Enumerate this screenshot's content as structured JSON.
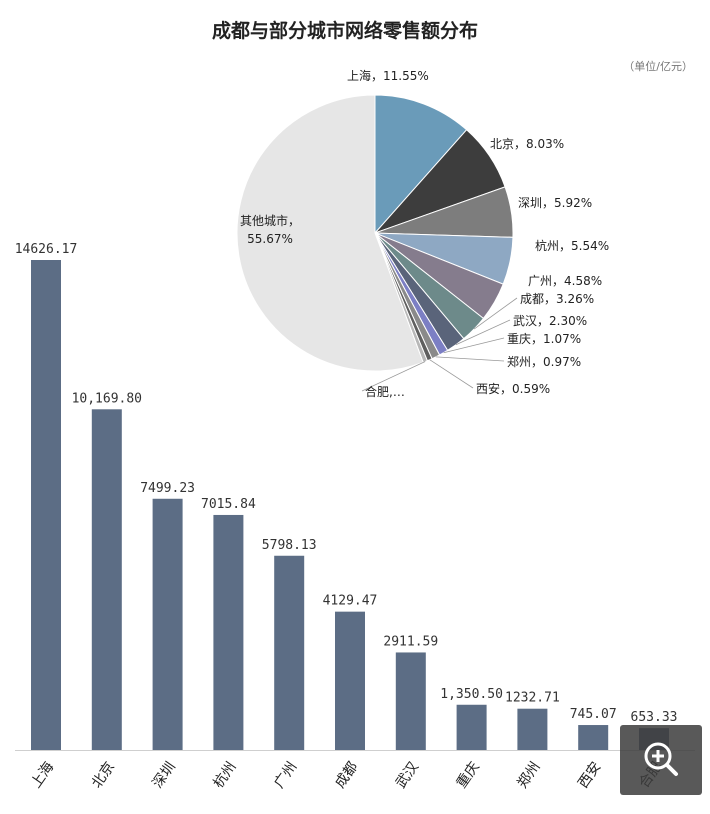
{
  "chart_data": [
    {
      "type": "bar",
      "title": "成都与部分城市网络零售额分布",
      "categories": [
        "上海",
        "北京",
        "深圳",
        "杭州",
        "广州",
        "成都",
        "武汉",
        "重庆",
        "郑州",
        "西安",
        "合肥"
      ],
      "values": [
        14626.17,
        10169.8,
        7499.23,
        7015.84,
        5798.13,
        4129.47,
        2911.59,
        1350.5,
        1232.71,
        745.07,
        653.33
      ],
      "value_labels": [
        "14626.17",
        "10,169.80",
        "7499.23",
        "7015.84",
        "5798.13",
        "4129.47",
        "2911.59",
        "1,350.50",
        "1232.71",
        "745.07",
        "653.33"
      ],
      "color": "#5c6d85",
      "ylim": [
        0,
        14626.17
      ],
      "grid": false
    },
    {
      "type": "pie",
      "unit": "（单位/亿元）",
      "slices": [
        {
          "name": "上海",
          "value": 11.55,
          "label": "上海，11.55%",
          "color": "#6a9bb9"
        },
        {
          "name": "北京",
          "value": 8.03,
          "label": "北京，8.03%",
          "color": "#3d3d3d"
        },
        {
          "name": "深圳",
          "value": 5.92,
          "label": "深圳，5.92%",
          "color": "#7d7d7d"
        },
        {
          "name": "杭州",
          "value": 5.54,
          "label": "杭州，5.54%",
          "color": "#8ea8c3"
        },
        {
          "name": "广州",
          "value": 4.58,
          "label": "广州，4.58%",
          "color": "#857c8d"
        },
        {
          "name": "成都",
          "value": 3.26,
          "label": "成都，3.26%",
          "color": "#6d8a8a"
        },
        {
          "name": "武汉",
          "value": 2.3,
          "label": "武汉，2.30%",
          "color": "#5a647a"
        },
        {
          "name": "重庆",
          "value": 1.07,
          "label": "重庆，1.07%",
          "color": "#7c7fc4"
        },
        {
          "name": "郑州",
          "value": 0.97,
          "label": "郑州，0.97%",
          "color": "#8a8a8a"
        },
        {
          "name": "西安",
          "value": 0.59,
          "label": "西安，0.59%",
          "color": "#5f5f5f"
        },
        {
          "name": "合肥",
          "value": 0.52,
          "label": "合肥,…",
          "color": "#b8b8b8"
        },
        {
          "name": "其他城市",
          "value": 55.67,
          "label": "其他城市，\n55.67%",
          "color": "#e6e6e6"
        }
      ]
    }
  ],
  "zoom_icon": "zoom-in-icon"
}
